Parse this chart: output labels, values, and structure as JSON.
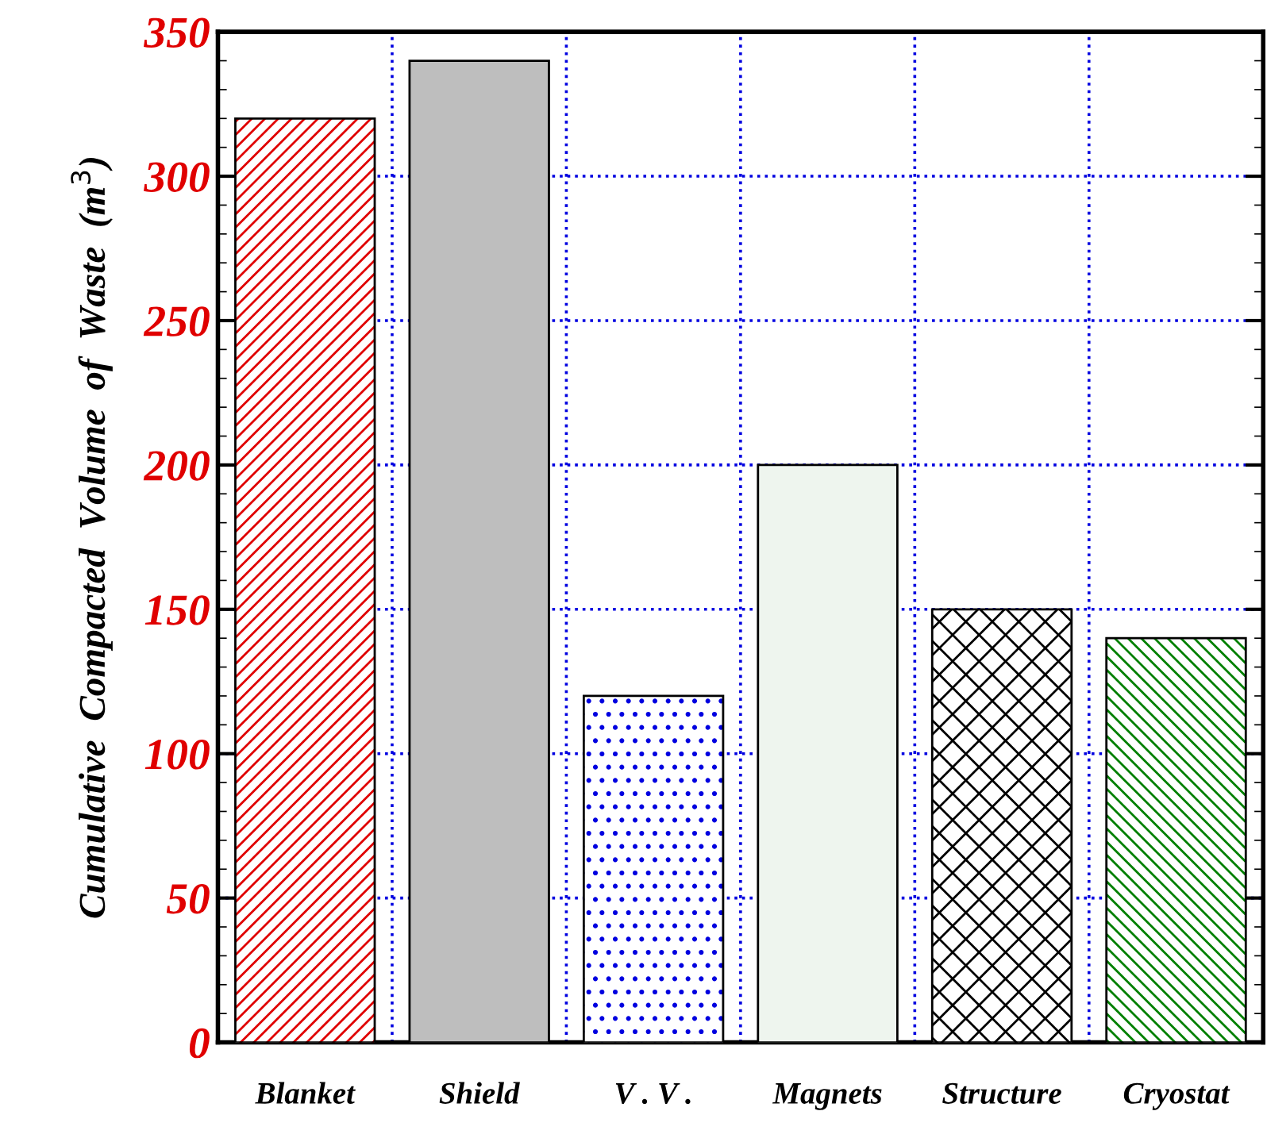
{
  "chart_data": {
    "type": "bar",
    "ylabel": "Cumulative  Compacted  Volume  of  Waste  (m$^{3}$)",
    "categories": [
      "Blanket",
      "Shield",
      "V . V .",
      "Magnets",
      "Structure",
      "Cryostat"
    ],
    "values": [
      320,
      340,
      120,
      200,
      150,
      140
    ],
    "colors": [
      "#e00000",
      "#bebebe",
      "#0000e0",
      "#eef5ee",
      "#000000",
      "#008000"
    ],
    "ylim": [
      0,
      350
    ],
    "yticks": [
      0,
      50,
      100,
      150,
      200,
      250,
      300,
      350
    ],
    "grid": true
  }
}
